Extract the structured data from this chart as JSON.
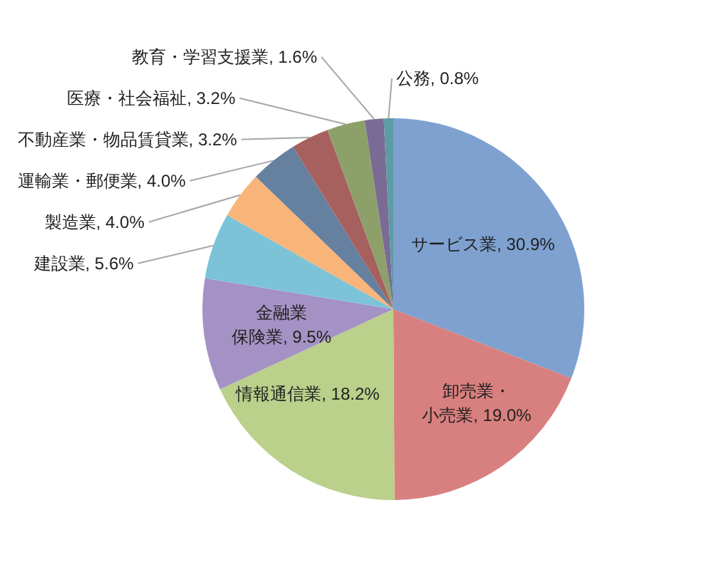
{
  "chart_data": {
    "type": "pie",
    "categories": [
      "サービス業",
      "卸売業・小売業",
      "情報通信業",
      "金融業保険業",
      "建設業",
      "製造業",
      "運輸業・郵便業",
      "不動産業・物品賃貸業",
      "医療・社会福祉",
      "教育・学習支援業",
      "公務"
    ],
    "values": [
      30.9,
      19.0,
      18.2,
      9.5,
      5.6,
      4.0,
      4.0,
      3.2,
      3.2,
      1.6,
      0.8
    ],
    "value_labels": [
      "30.9%",
      "19.0%",
      "18.2%",
      "9.5%",
      "5.6%",
      "4.0%",
      "4.0%",
      "3.2%",
      "3.2%",
      "1.6%",
      "0.8%"
    ],
    "colors": [
      "#7ea1d0",
      "#d8807f",
      "#bad08b",
      "#a592c4",
      "#7cc3d7",
      "#f9b47a",
      "#66809f",
      "#a6615f",
      "#8da06a",
      "#7a6b94",
      "#5d9ca6"
    ]
  }
}
